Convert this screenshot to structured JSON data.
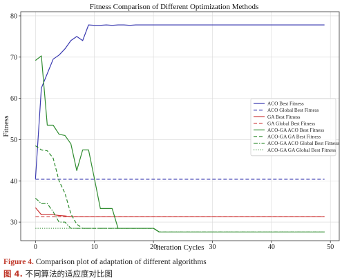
{
  "chart_data": {
    "type": "line",
    "title": "Fitness Comparison of Different Optimization Methods",
    "xlabel": "Iteration Cycles",
    "ylabel": "Fitness",
    "xlim": [
      -2.5,
      51.5
    ],
    "ylim": [
      25.5,
      81
    ],
    "xticks": [
      0,
      10,
      20,
      30,
      40,
      50
    ],
    "yticks": [
      30,
      40,
      50,
      60,
      70,
      80
    ],
    "grid": true,
    "legend_position": "center-right",
    "series": [
      {
        "name": "ACO Best Fitness",
        "color": "#3a3ab0",
        "dash": "solid",
        "x": [
          0,
          1,
          2,
          3,
          4,
          5,
          6,
          7,
          8,
          9,
          10,
          11,
          12,
          13,
          14,
          15,
          16,
          17,
          18,
          19,
          20,
          21,
          22,
          23,
          24,
          25,
          26,
          27,
          28,
          29,
          30,
          31,
          32,
          33,
          34,
          35,
          36,
          37,
          38,
          39,
          40,
          41,
          42,
          43,
          44,
          45,
          46,
          47,
          48,
          49
        ],
        "y": [
          40.5,
          62.5,
          66,
          69.5,
          70.5,
          72,
          74,
          75,
          74,
          77.8,
          77.7,
          77.7,
          77.8,
          77.7,
          77.8,
          77.8,
          77.7,
          77.8,
          77.8,
          77.8,
          77.8,
          77.8,
          77.8,
          77.8,
          77.8,
          77.8,
          77.8,
          77.8,
          77.8,
          77.8,
          77.8,
          77.8,
          77.8,
          77.8,
          77.8,
          77.8,
          77.8,
          77.8,
          77.8,
          77.8,
          77.8,
          77.8,
          77.8,
          77.8,
          77.8,
          77.8,
          77.8,
          77.8,
          77.8,
          77.8
        ]
      },
      {
        "name": "ACO Global Best Fitness",
        "color": "#3a3ab0",
        "dash": "dashed",
        "x": [
          0,
          49
        ],
        "y": [
          40.4,
          40.4
        ]
      },
      {
        "name": "GA Best Fitness",
        "color": "#cc3333",
        "dash": "solid",
        "x": [
          0,
          1,
          2,
          3,
          4,
          5,
          6,
          7,
          8,
          9,
          10,
          20,
          30,
          40,
          49
        ],
        "y": [
          33.5,
          31.8,
          31.8,
          31.8,
          31.6,
          31.5,
          31.3,
          31.3,
          31.3,
          31.3,
          31.3,
          31.3,
          31.3,
          31.3,
          31.3
        ]
      },
      {
        "name": "GA Global Best Fitness",
        "color": "#cc3333",
        "dash": "dashed",
        "x": [
          0,
          49
        ],
        "y": [
          31.3,
          31.3
        ]
      },
      {
        "name": "ACO-GA ACO Best Fitness",
        "color": "#2e8b2e",
        "dash": "solid",
        "x": [
          0,
          1,
          2,
          3,
          4,
          5,
          6,
          7,
          8,
          9,
          10,
          11,
          12,
          13,
          14,
          15,
          16,
          17,
          18,
          19,
          20,
          21,
          22,
          30,
          40,
          49
        ],
        "y": [
          69.2,
          70.3,
          53.5,
          53.5,
          51.3,
          51,
          49,
          42.5,
          47.5,
          47.5,
          40.5,
          33.3,
          33.3,
          33.3,
          28.5,
          28.5,
          28.5,
          28.5,
          28.5,
          28.5,
          28.5,
          27.6,
          27.6,
          27.6,
          27.6,
          27.6
        ]
      },
      {
        "name": "ACO-GA GA Best Fitness",
        "color": "#2e8b2e",
        "dash": "dashed",
        "x": [
          0,
          1,
          2,
          3,
          4,
          5,
          6,
          7,
          8,
          9,
          10,
          12,
          14,
          16,
          18,
          20,
          21,
          30,
          40,
          49
        ],
        "y": [
          48.5,
          47.5,
          47.3,
          45.5,
          40,
          37,
          32,
          29.5,
          28.5,
          28.5,
          28.5,
          28.5,
          28.5,
          28.5,
          28.5,
          28.5,
          27.6,
          27.6,
          27.6,
          27.6
        ]
      },
      {
        "name": "ACO-GA ACO Global Best Fitness",
        "color": "#2e8b2e",
        "dash": "dashdot",
        "x": [
          0,
          1,
          2,
          3,
          4,
          5,
          6,
          7,
          8,
          9,
          10,
          15,
          20,
          21,
          30,
          40,
          49
        ],
        "y": [
          35.8,
          34.5,
          34.5,
          32.5,
          30,
          30,
          28.5,
          28.5,
          28.5,
          28.5,
          28.5,
          28.5,
          28.5,
          27.6,
          27.6,
          27.6,
          27.6
        ]
      },
      {
        "name": "ACO-GA GA Global Best Fitness",
        "color": "#2e8b2e",
        "dash": "dotted",
        "x": [
          0,
          20,
          21,
          49
        ],
        "y": [
          28.5,
          28.5,
          27.6,
          27.6
        ]
      }
    ]
  },
  "caption": {
    "en_label": "Figure 4.",
    "en_text": "Comparison plot of adaptation of different algorithms",
    "cn_label": "图 4.",
    "cn_text": "不同算法的适应度对比图"
  }
}
